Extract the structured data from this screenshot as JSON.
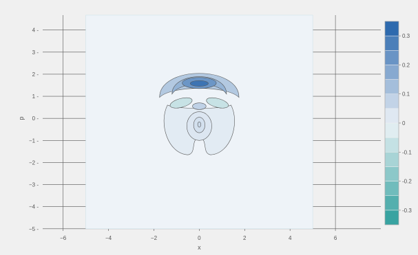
{
  "chart_data": {
    "type": "contour",
    "xlabel": "x",
    "ylabel": "p",
    "xlim": [
      -6.9,
      8.0
    ],
    "ylim": [
      -5.1,
      4.8
    ],
    "x_ticks": [
      -6,
      -4,
      -2,
      0,
      2,
      4,
      6
    ],
    "y_ticks": [
      -5,
      -4,
      -3,
      -2,
      -1,
      0,
      1,
      2,
      3,
      4
    ],
    "data_region_x": [
      -5,
      5
    ],
    "data_region_y": [
      -5,
      5
    ],
    "grid": true,
    "colorscale": {
      "min": -0.35,
      "max": 0.35,
      "step": 0.05,
      "ticks": [
        -0.3,
        -0.2,
        -0.1,
        0,
        0.1,
        0.2,
        0.3
      ],
      "low_color": "#2a9d9a",
      "mid_color": "#eef3f8",
      "high_color": "#1f5fa8",
      "placement": "right"
    },
    "field": {
      "description_levels": [
        -0.15,
        -0.1,
        -0.05,
        0.05,
        0.1,
        0.15,
        0.2,
        0.25,
        0.3
      ],
      "positive_peak": {
        "x": 0.0,
        "y": 1.55,
        "value": 0.32
      },
      "negative_lobes": [
        {
          "x": -0.8,
          "y": 0.7,
          "value": -0.12
        },
        {
          "x": 0.8,
          "y": 0.7,
          "value": -0.12
        }
      ],
      "center_peak": {
        "x": 0.0,
        "y": -0.3,
        "value": 0.06
      }
    }
  }
}
